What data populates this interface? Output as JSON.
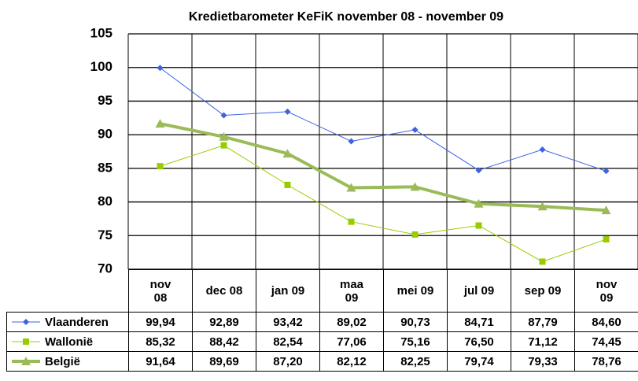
{
  "chart_data": {
    "type": "line",
    "title": "Kredietbarometer KeFiK november 08 - november 09",
    "categories": [
      "nov\n08",
      "dec 08",
      "jan 09",
      "maa\n09",
      "mei 09",
      "jul 09",
      "sep 09",
      "nov\n09"
    ],
    "series": [
      {
        "name": "Vlaanderen",
        "color": "#3e62e0",
        "marker": "diamond",
        "line_width": 1,
        "values": [
          99.94,
          92.89,
          93.42,
          89.02,
          90.73,
          84.71,
          87.79,
          84.6
        ],
        "value_labels": [
          "99,94",
          "92,89",
          "93,42",
          "89,02",
          "90,73",
          "84,71",
          "87,79",
          "84,60"
        ]
      },
      {
        "name": "Wallonië",
        "color": "#99cc00",
        "marker": "square",
        "line_width": 1,
        "values": [
          85.32,
          88.42,
          82.54,
          77.06,
          75.16,
          76.5,
          71.12,
          74.45
        ],
        "value_labels": [
          "85,32",
          "88,42",
          "82,54",
          "77,06",
          "75,16",
          "76,50",
          "71,12",
          "74,45"
        ]
      },
      {
        "name": "België",
        "color": "#9bbb59",
        "marker": "triangle",
        "line_width": 4,
        "values": [
          91.64,
          89.69,
          87.2,
          82.12,
          82.25,
          79.74,
          79.33,
          78.76
        ],
        "value_labels": [
          "91,64",
          "89,69",
          "87,20",
          "82,12",
          "82,25",
          "79,74",
          "79,33",
          "78,76"
        ]
      }
    ],
    "ylim": [
      70,
      105
    ],
    "yticks": [
      70,
      75,
      80,
      85,
      90,
      95,
      100,
      105
    ],
    "grid": true
  }
}
